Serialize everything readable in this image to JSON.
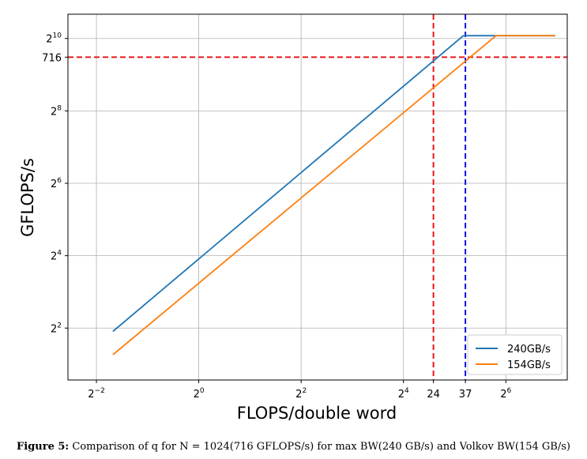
{
  "chart_data": {
    "type": "line",
    "xlabel": "FLOPS/double word",
    "ylabel": "GFLOPS/s",
    "x_scale": "log2",
    "y_scale": "log2",
    "xlim": [
      0.17,
      147
    ],
    "ylim": [
      1.48,
      1630
    ],
    "grid": true,
    "legend_position": "lower-right",
    "x_ticks": [
      {
        "value": 0.25,
        "base": "2",
        "exp": "−2"
      },
      {
        "value": 1,
        "base": "2",
        "exp": "0"
      },
      {
        "value": 4,
        "base": "2",
        "exp": "2"
      },
      {
        "value": 16,
        "base": "2",
        "exp": "4"
      },
      {
        "value": 24,
        "text": "24"
      },
      {
        "value": 37,
        "text": "37"
      },
      {
        "value": 64,
        "base": "2",
        "exp": "6"
      }
    ],
    "y_ticks": [
      {
        "value": 4,
        "base": "2",
        "exp": "2"
      },
      {
        "value": 16,
        "base": "2",
        "exp": "4"
      },
      {
        "value": 64,
        "base": "2",
        "exp": "6"
      },
      {
        "value": 256,
        "base": "2",
        "exp": "8"
      },
      {
        "value": 716,
        "text": "716"
      },
      {
        "value": 1024,
        "base": "2",
        "exp": "10"
      }
    ],
    "series": [
      {
        "name": "240GB/s",
        "color": "#1f77b4",
        "points": [
          [
            0.3125,
            3.75
          ],
          [
            36,
            1080
          ],
          [
            125,
            1080
          ]
        ]
      },
      {
        "name": "154GB/s",
        "color": "#ff7f0e",
        "points": [
          [
            0.3125,
            2.4
          ],
          [
            56,
            1080
          ],
          [
            125,
            1080
          ]
        ]
      }
    ],
    "reference_lines": [
      {
        "axis": "y",
        "value": 716,
        "color": "#e8191c",
        "style": "dashed"
      },
      {
        "axis": "x",
        "value": 24,
        "color": "#e8191c",
        "style": "dashed"
      },
      {
        "axis": "x",
        "value": 37,
        "color": "#1010e0",
        "style": "dashed"
      }
    ]
  },
  "caption": {
    "label": "Figure 5:",
    "text": "Comparison of q for N = 1024(716 GFLOPS/s) for max BW(240 GB/s) and Volkov BW(154 GB/s)"
  }
}
